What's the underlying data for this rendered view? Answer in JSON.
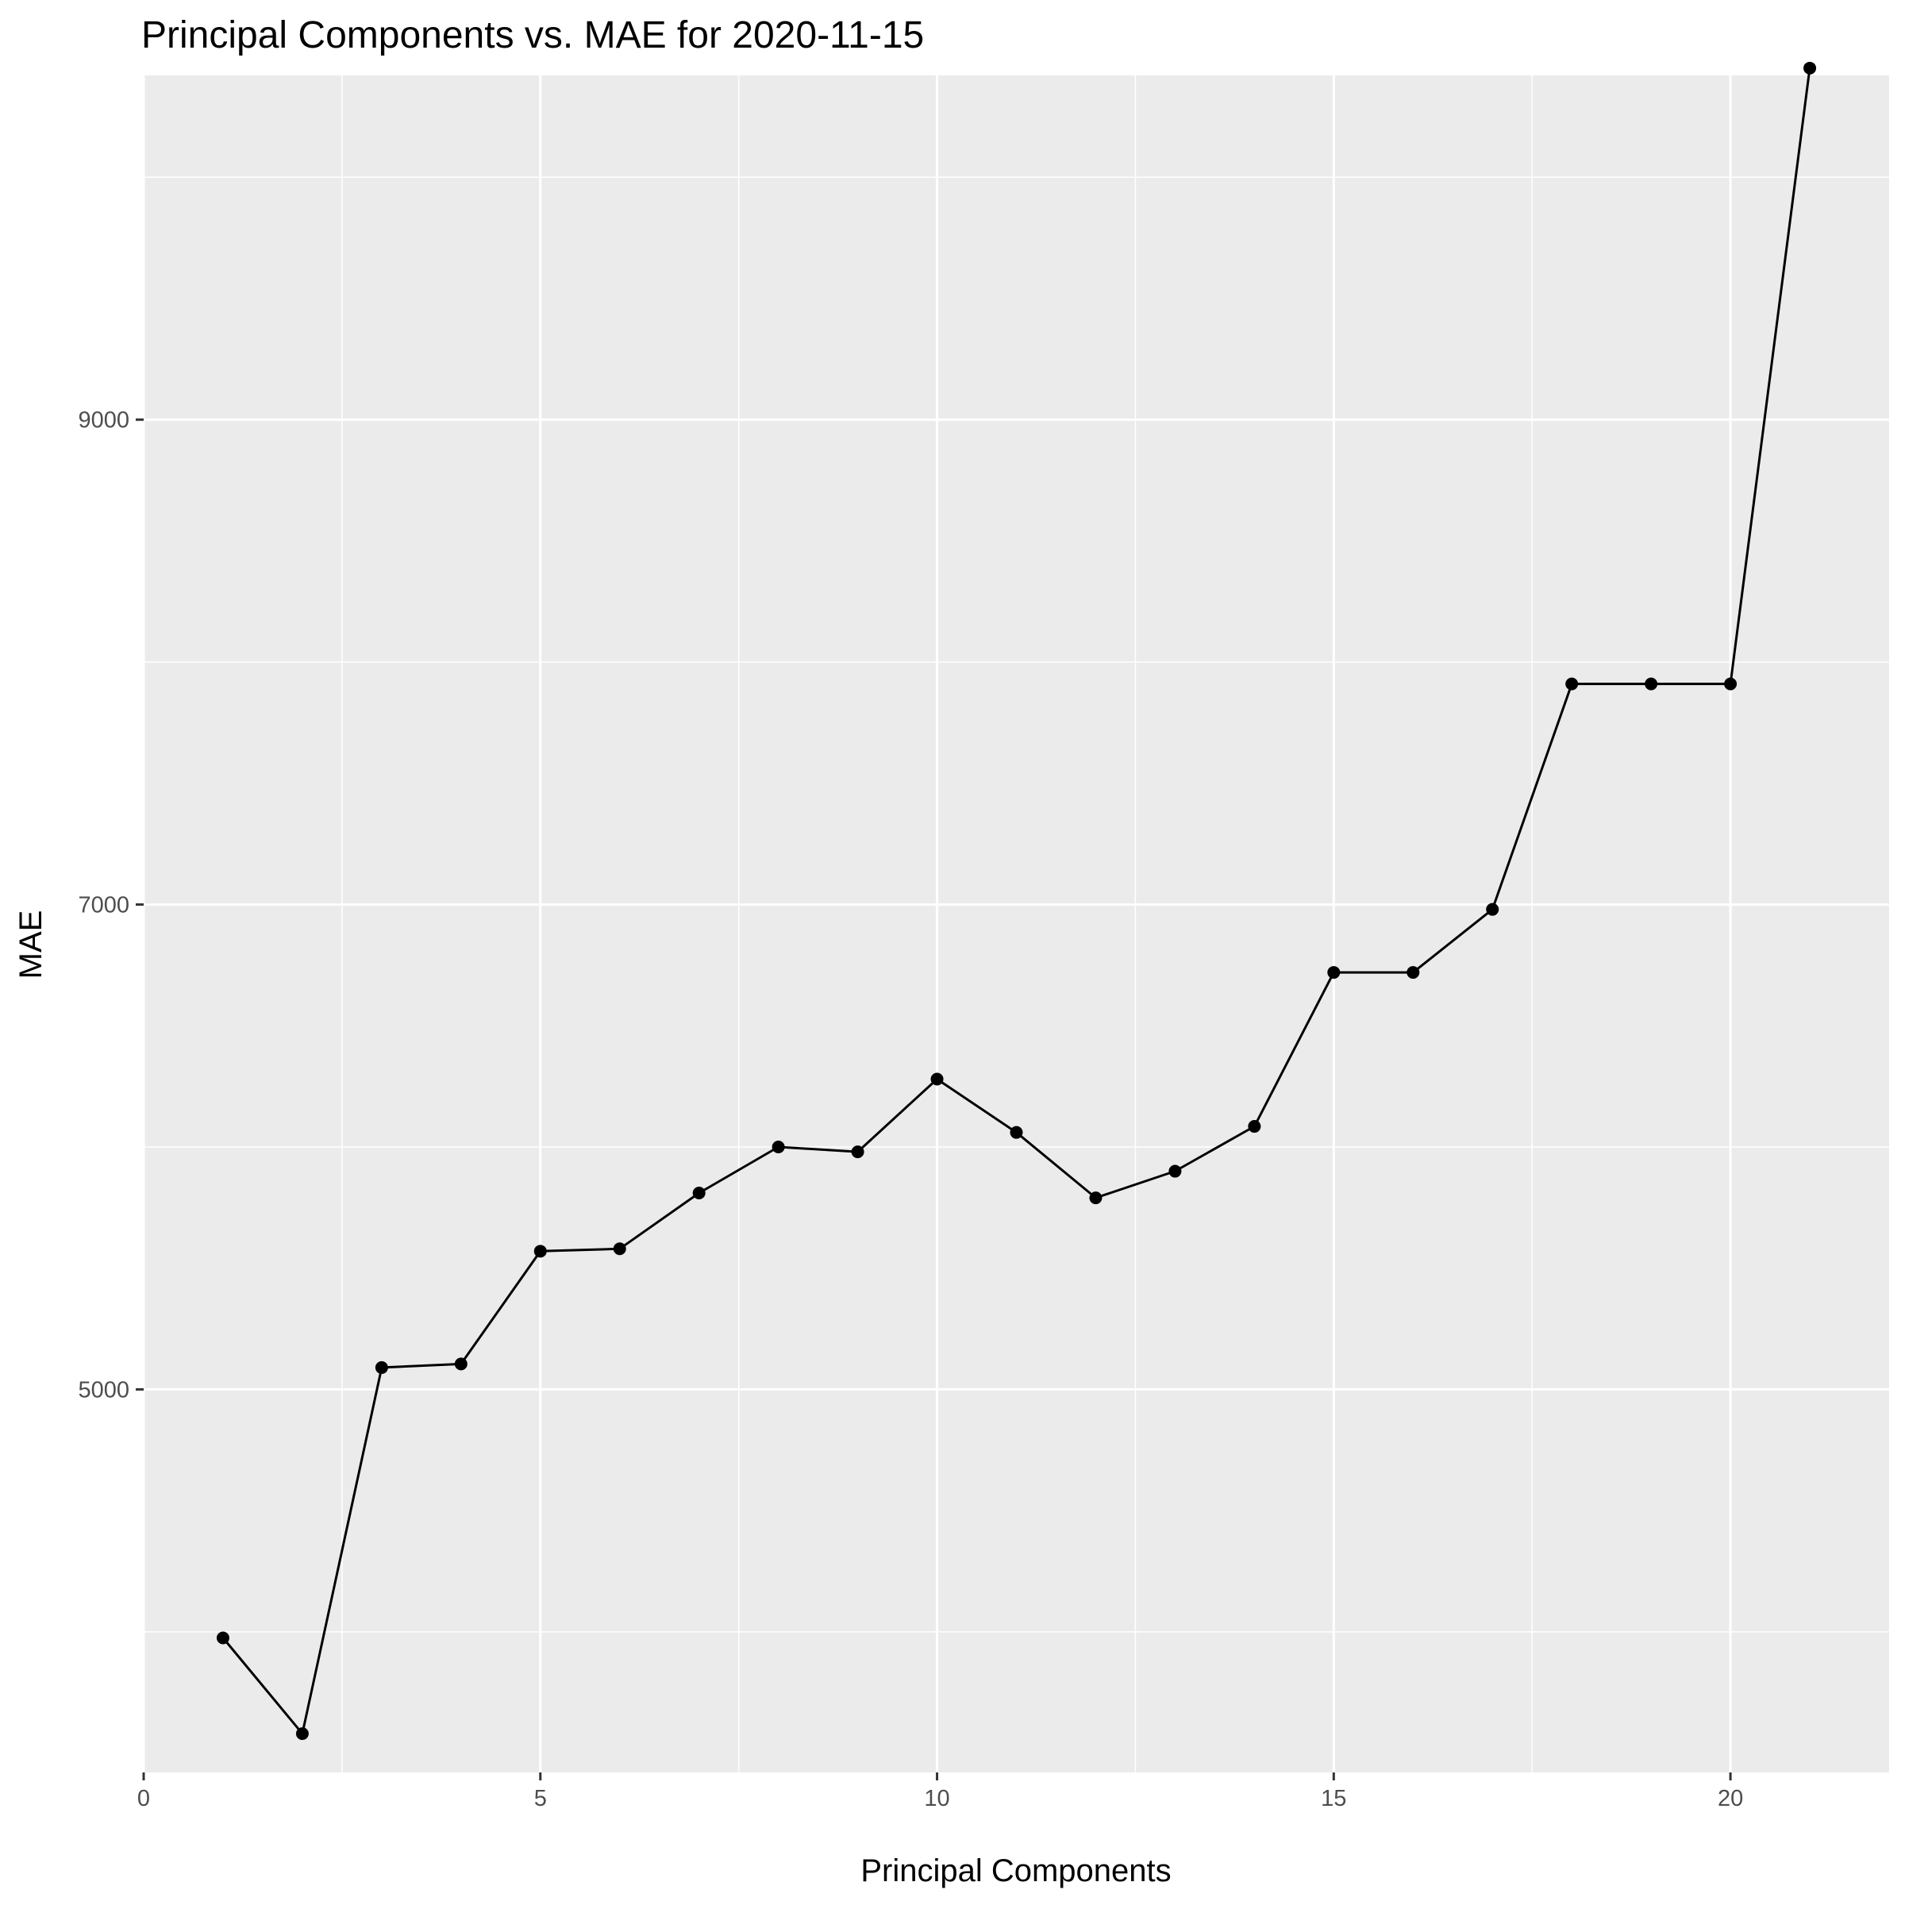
{
  "chart_data": {
    "type": "line",
    "title": "Principal Components vs. MAE for 2020-11-15",
    "xlabel": "Principal Components",
    "ylabel": "MAE",
    "xlim": [
      0,
      22
    ],
    "ylim": [
      3420,
      10420
    ],
    "x_ticks": [
      0,
      5,
      10,
      15,
      20
    ],
    "x_tick_labels": [
      "0",
      "5",
      "10",
      "15",
      "20"
    ],
    "y_ticks": [
      5000,
      7000,
      9000
    ],
    "y_tick_labels": [
      "5000",
      "7000",
      "9000"
    ],
    "x_minor_ticks": [
      2.5,
      7.5,
      12.5,
      17.5
    ],
    "y_minor_ticks": [
      4000,
      6000,
      8000,
      10000
    ],
    "grid": true,
    "legend": "none",
    "series": [
      {
        "x": [
          1,
          2,
          3,
          4,
          5,
          6,
          7,
          8,
          9,
          10,
          11,
          12,
          13,
          14,
          15,
          16,
          17,
          18,
          19,
          20,
          21
        ],
        "y": [
          3975,
          3580,
          5090,
          5105,
          5570,
          5580,
          5810,
          6000,
          5980,
          6280,
          6060,
          5790,
          5900,
          6085,
          6720,
          6720,
          6980,
          7910,
          7910,
          7910,
          10450
        ],
        "color": "#000000"
      }
    ]
  },
  "colors": {
    "panel_background": "#ebebeb",
    "gridline": "#ffffff",
    "line": "#000000",
    "tick_label": "#4d4d4d",
    "tick_mark": "#333333"
  }
}
